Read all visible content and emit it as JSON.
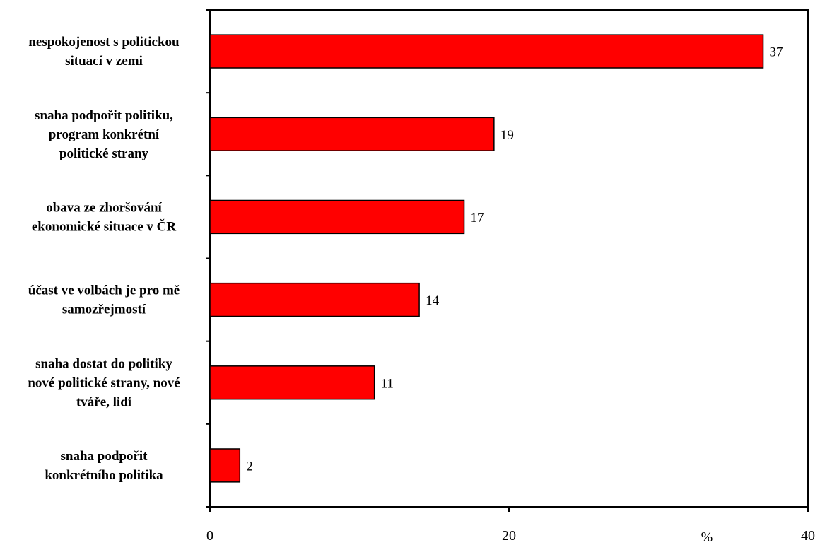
{
  "chart_data": {
    "type": "bar",
    "orientation": "horizontal",
    "categories": [
      "nespokojenost s politickou situací v zemi",
      "snaha podpořit politiku, program konkrétní politické strany",
      "obava ze zhoršování ekonomické situace v ČR",
      "účast ve volbách je pro mě samozřejmostí",
      "snaha dostat do politiky nové politické strany, nové tváře, lidi",
      "snaha podpořit konkrétního politika"
    ],
    "category_lines": [
      [
        "nespokojenost s politickou",
        "situací v zemi"
      ],
      [
        "snaha podpořit politiku,",
        "program konkrétní",
        "politické strany"
      ],
      [
        "obava ze zhoršování",
        "ekonomické situace v ČR"
      ],
      [
        "účast ve volbách je pro mě",
        "samozřejmostí"
      ],
      [
        "snaha dostat do politiky",
        "nové politické strany, nové",
        "tváře, lidi"
      ],
      [
        "snaha podpořit",
        "konkrétního politika"
      ]
    ],
    "values": [
      37,
      19,
      17,
      14,
      11,
      2
    ],
    "data_labels": [
      "37",
      "19",
      "17",
      "14",
      "11",
      "2"
    ],
    "xlim": [
      0,
      40
    ],
    "xticks": [
      0,
      20,
      40
    ],
    "xtick_labels": [
      "0",
      "20",
      "40"
    ],
    "x_unit_label": "%",
    "bar_color": "#ff0000",
    "bar_edge_color": "#000000",
    "grid": false,
    "legend": "none"
  }
}
